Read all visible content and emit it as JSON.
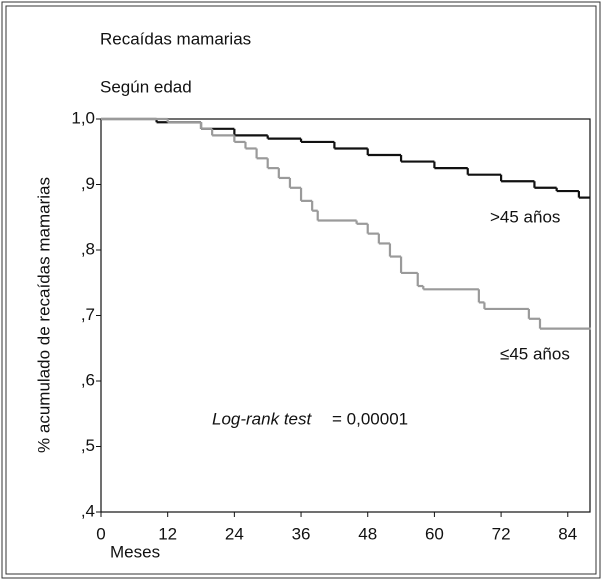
{
  "chart_data": {
    "type": "step",
    "title": "Recaídas mamarias",
    "subtitle": "Según edad",
    "xlabel": "Meses",
    "ylabel": "% acumulado de recaídas mamarias",
    "annotations": [
      ">45 años",
      "≤45 años",
      "Log-rank test",
      "= 0,00001"
    ],
    "xlim": [
      0,
      88
    ],
    "xticks": [
      0,
      12,
      24,
      36,
      48,
      60,
      72,
      84
    ],
    "ylim": [
      0.4,
      1.0
    ],
    "yticks": [
      {
        "value": 1.0,
        "label": "1,0"
      },
      {
        "value": 0.9,
        "label": ",9"
      },
      {
        "value": 0.8,
        "label": ",8"
      },
      {
        "value": 0.7,
        "label": ",7"
      },
      {
        "value": 0.6,
        "label": ",6"
      },
      {
        "value": 0.5,
        "label": ",5"
      },
      {
        "value": 0.4,
        "label": ",4"
      }
    ],
    "series": [
      {
        "name": ">45 años",
        "color": "#111111",
        "x": [
          0,
          10,
          18,
          24,
          30,
          36,
          42,
          48,
          54,
          60,
          66,
          72,
          78,
          82,
          86,
          88
        ],
        "values": [
          1.0,
          0.995,
          0.985,
          0.975,
          0.97,
          0.965,
          0.955,
          0.945,
          0.935,
          0.925,
          0.915,
          0.905,
          0.895,
          0.89,
          0.88,
          0.88
        ]
      },
      {
        "name": "≤45 años",
        "color": "#9a9a9a",
        "x": [
          0,
          12,
          18,
          20,
          24,
          26,
          28,
          30,
          32,
          34,
          36,
          38,
          39,
          46,
          48,
          50,
          52,
          54,
          57,
          58,
          68,
          69,
          77,
          79,
          88
        ],
        "values": [
          1.0,
          0.995,
          0.985,
          0.975,
          0.965,
          0.955,
          0.94,
          0.925,
          0.91,
          0.895,
          0.875,
          0.86,
          0.845,
          0.84,
          0.825,
          0.81,
          0.79,
          0.765,
          0.745,
          0.74,
          0.72,
          0.71,
          0.695,
          0.68,
          0.68
        ]
      }
    ]
  }
}
